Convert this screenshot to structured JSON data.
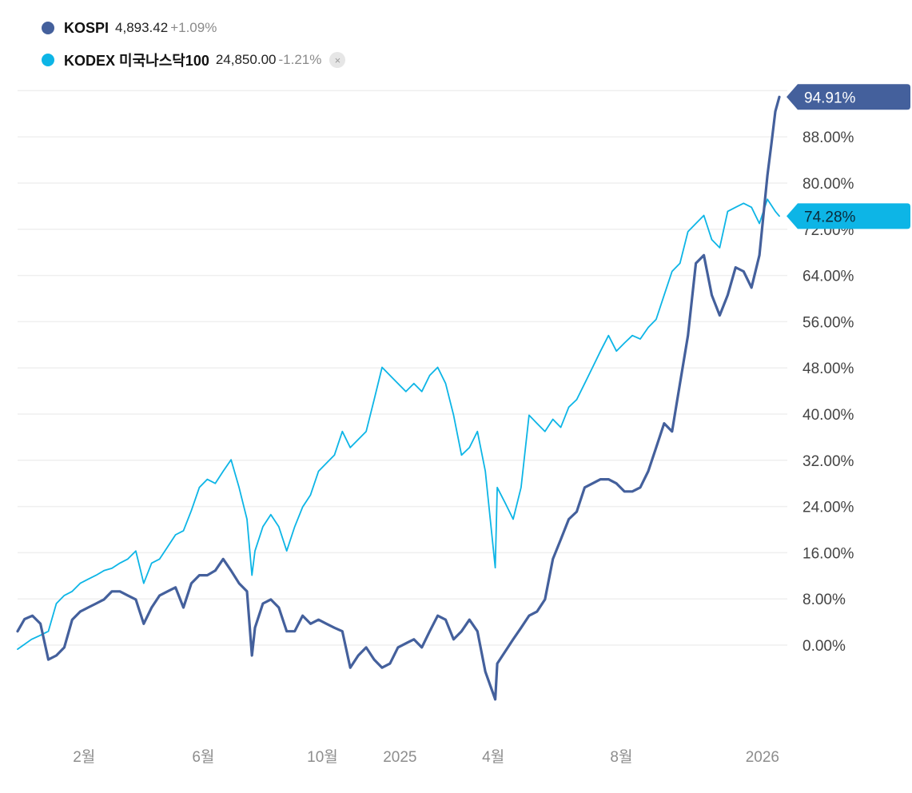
{
  "legend": [
    {
      "name": "KOSPI",
      "price": "4,893.42",
      "change": "+1.09%",
      "color": "#44609c",
      "removable": false
    },
    {
      "name": "KODEX 미국나스닥100",
      "price": "24,850.00",
      "change": "-1.21%",
      "color": "#0db5e6",
      "removable": true,
      "remove_icon": "×"
    }
  ],
  "chart_data": {
    "type": "line",
    "title": "",
    "xlabel": "",
    "ylabel": "",
    "y_unit": "%",
    "ylim": [
      -16,
      96
    ],
    "yticks": [
      0,
      8,
      16,
      24,
      32,
      40,
      48,
      56,
      64,
      72,
      80,
      88
    ],
    "ytick_labels": [
      "0.00%",
      "8.00%",
      "16.00%",
      "24.00%",
      "32.00%",
      "40.00%",
      "48.00%",
      "56.00%",
      "64.00%",
      "72.00%",
      "80.00%",
      "88.00%"
    ],
    "xlim": [
      "2023-12-13",
      "2026-01-19"
    ],
    "xticks": [
      {
        "date": "2024-02-18",
        "label": "2월"
      },
      {
        "date": "2024-06-17",
        "label": "6월"
      },
      {
        "date": "2024-10-15",
        "label": "10월"
      },
      {
        "date": "2025-01-01",
        "label": "2025"
      },
      {
        "date": "2025-04-05",
        "label": "4월"
      },
      {
        "date": "2025-08-12",
        "label": "8월"
      },
      {
        "date": "2026-01-01",
        "label": "2026"
      }
    ],
    "grid": true,
    "legend_position": "top-left",
    "series": [
      {
        "name": "KOSPI",
        "color": "#44609c",
        "last_value_label": "94.91%",
        "points": [
          [
            "2023-12-13",
            2.4
          ],
          [
            "2023-12-20",
            4.5
          ],
          [
            "2023-12-28",
            5.1
          ],
          [
            "2024-01-05",
            3.7
          ],
          [
            "2024-01-13",
            -2.5
          ],
          [
            "2024-01-21",
            -1.8
          ],
          [
            "2024-01-29",
            -0.4
          ],
          [
            "2024-02-06",
            4.4
          ],
          [
            "2024-02-14",
            5.8
          ],
          [
            "2024-02-22",
            6.5
          ],
          [
            "2024-03-01",
            7.2
          ],
          [
            "2024-03-09",
            7.9
          ],
          [
            "2024-03-17",
            9.3
          ],
          [
            "2024-03-25",
            9.3
          ],
          [
            "2024-04-02",
            8.6
          ],
          [
            "2024-04-10",
            7.9
          ],
          [
            "2024-04-18",
            3.7
          ],
          [
            "2024-04-26",
            6.5
          ],
          [
            "2024-05-04",
            8.6
          ],
          [
            "2024-05-12",
            9.3
          ],
          [
            "2024-05-20",
            10.0
          ],
          [
            "2024-05-28",
            6.5
          ],
          [
            "2024-06-05",
            10.7
          ],
          [
            "2024-06-13",
            12.1
          ],
          [
            "2024-06-21",
            12.1
          ],
          [
            "2024-06-29",
            12.9
          ],
          [
            "2024-07-07",
            14.9
          ],
          [
            "2024-07-15",
            12.9
          ],
          [
            "2024-07-23",
            10.7
          ],
          [
            "2024-07-31",
            9.3
          ],
          [
            "2024-08-05",
            -1.8
          ],
          [
            "2024-08-08",
            3.0
          ],
          [
            "2024-08-16",
            7.2
          ],
          [
            "2024-08-24",
            7.9
          ],
          [
            "2024-09-01",
            6.5
          ],
          [
            "2024-09-09",
            2.4
          ],
          [
            "2024-09-17",
            2.4
          ],
          [
            "2024-09-25",
            5.1
          ],
          [
            "2024-10-03",
            3.7
          ],
          [
            "2024-10-11",
            4.4
          ],
          [
            "2024-10-19",
            3.7
          ],
          [
            "2024-10-27",
            3.0
          ],
          [
            "2024-11-04",
            2.4
          ],
          [
            "2024-11-12",
            -3.9
          ],
          [
            "2024-11-20",
            -1.8
          ],
          [
            "2024-11-28",
            -0.4
          ],
          [
            "2024-12-06",
            -2.5
          ],
          [
            "2024-12-14",
            -3.9
          ],
          [
            "2024-12-22",
            -3.2
          ],
          [
            "2024-12-30",
            -0.4
          ],
          [
            "2025-01-07",
            0.3
          ],
          [
            "2025-01-15",
            1.0
          ],
          [
            "2025-01-23",
            -0.4
          ],
          [
            "2025-01-31",
            2.4
          ],
          [
            "2025-02-08",
            5.1
          ],
          [
            "2025-02-16",
            4.4
          ],
          [
            "2025-02-24",
            1.0
          ],
          [
            "2025-03-04",
            2.4
          ],
          [
            "2025-03-12",
            4.4
          ],
          [
            "2025-03-20",
            2.4
          ],
          [
            "2025-03-28",
            -4.6
          ],
          [
            "2025-04-07",
            -9.4
          ],
          [
            "2025-04-09",
            -3.2
          ],
          [
            "2025-04-17",
            -1.1
          ],
          [
            "2025-04-25",
            1.0
          ],
          [
            "2025-05-03",
            3.0
          ],
          [
            "2025-05-11",
            5.1
          ],
          [
            "2025-05-19",
            5.8
          ],
          [
            "2025-05-27",
            7.9
          ],
          [
            "2025-06-04",
            14.9
          ],
          [
            "2025-06-12",
            18.3
          ],
          [
            "2025-06-20",
            21.8
          ],
          [
            "2025-06-28",
            23.1
          ],
          [
            "2025-07-06",
            27.3
          ],
          [
            "2025-07-14",
            28.0
          ],
          [
            "2025-07-22",
            28.7
          ],
          [
            "2025-07-30",
            28.7
          ],
          [
            "2025-08-07",
            28.0
          ],
          [
            "2025-08-15",
            26.6
          ],
          [
            "2025-08-23",
            26.6
          ],
          [
            "2025-08-31",
            27.3
          ],
          [
            "2025-09-08",
            30.1
          ],
          [
            "2025-09-16",
            34.2
          ],
          [
            "2025-09-24",
            38.4
          ],
          [
            "2025-10-02",
            37.0
          ],
          [
            "2025-10-10",
            45.3
          ],
          [
            "2025-10-18",
            53.6
          ],
          [
            "2025-10-26",
            66.1
          ],
          [
            "2025-11-03",
            67.5
          ],
          [
            "2025-11-11",
            60.6
          ],
          [
            "2025-11-19",
            57.1
          ],
          [
            "2025-11-27",
            60.6
          ],
          [
            "2025-12-05",
            65.4
          ],
          [
            "2025-12-13",
            64.7
          ],
          [
            "2025-12-21",
            61.9
          ],
          [
            "2025-12-29",
            67.5
          ],
          [
            "2026-01-06",
            81.3
          ],
          [
            "2026-01-10",
            86.8
          ],
          [
            "2026-01-14",
            92.4
          ],
          [
            "2026-01-18",
            94.91
          ]
        ]
      },
      {
        "name": "KODEX 미국나스닥100",
        "color": "#0db5e6",
        "last_value_label": "74.28%",
        "points": [
          [
            "2023-12-13",
            -0.7
          ],
          [
            "2023-12-27",
            1.0
          ],
          [
            "2024-01-05",
            1.7
          ],
          [
            "2024-01-13",
            2.4
          ],
          [
            "2024-01-21",
            7.2
          ],
          [
            "2024-01-29",
            8.6
          ],
          [
            "2024-02-06",
            9.3
          ],
          [
            "2024-02-14",
            10.7
          ],
          [
            "2024-02-22",
            11.4
          ],
          [
            "2024-03-01",
            12.1
          ],
          [
            "2024-03-09",
            12.9
          ],
          [
            "2024-03-17",
            13.3
          ],
          [
            "2024-03-25",
            14.2
          ],
          [
            "2024-04-02",
            14.9
          ],
          [
            "2024-04-10",
            16.3
          ],
          [
            "2024-04-18",
            10.7
          ],
          [
            "2024-04-26",
            14.2
          ],
          [
            "2024-05-04",
            14.9
          ],
          [
            "2024-05-12",
            17.0
          ],
          [
            "2024-05-20",
            19.1
          ],
          [
            "2024-05-28",
            19.8
          ],
          [
            "2024-06-05",
            23.3
          ],
          [
            "2024-06-13",
            27.3
          ],
          [
            "2024-06-21",
            28.7
          ],
          [
            "2024-06-29",
            28.0
          ],
          [
            "2024-07-07",
            30.1
          ],
          [
            "2024-07-15",
            32.1
          ],
          [
            "2024-07-23",
            27.3
          ],
          [
            "2024-07-31",
            21.8
          ],
          [
            "2024-08-05",
            12.1
          ],
          [
            "2024-08-08",
            16.3
          ],
          [
            "2024-08-16",
            20.5
          ],
          [
            "2024-08-24",
            22.6
          ],
          [
            "2024-09-01",
            20.5
          ],
          [
            "2024-09-09",
            16.3
          ],
          [
            "2024-09-17",
            20.5
          ],
          [
            "2024-09-25",
            23.9
          ],
          [
            "2024-10-03",
            26.0
          ],
          [
            "2024-10-11",
            30.1
          ],
          [
            "2024-10-19",
            31.5
          ],
          [
            "2024-10-27",
            32.9
          ],
          [
            "2024-11-04",
            37.0
          ],
          [
            "2024-11-12",
            34.2
          ],
          [
            "2024-11-20",
            35.6
          ],
          [
            "2024-11-28",
            37.0
          ],
          [
            "2024-12-06",
            42.5
          ],
          [
            "2024-12-14",
            48.1
          ],
          [
            "2024-12-22",
            46.7
          ],
          [
            "2024-12-30",
            45.3
          ],
          [
            "2025-01-07",
            43.9
          ],
          [
            "2025-01-15",
            45.3
          ],
          [
            "2025-01-23",
            43.9
          ],
          [
            "2025-01-31",
            46.7
          ],
          [
            "2025-02-08",
            48.1
          ],
          [
            "2025-02-16",
            45.3
          ],
          [
            "2025-02-24",
            39.8
          ],
          [
            "2025-03-04",
            32.9
          ],
          [
            "2025-03-12",
            34.2
          ],
          [
            "2025-03-20",
            37.0
          ],
          [
            "2025-03-28",
            30.1
          ],
          [
            "2025-04-07",
            13.4
          ],
          [
            "2025-04-09",
            27.3
          ],
          [
            "2025-04-17",
            24.6
          ],
          [
            "2025-04-25",
            21.8
          ],
          [
            "2025-05-03",
            27.3
          ],
          [
            "2025-05-11",
            39.8
          ],
          [
            "2025-05-19",
            38.4
          ],
          [
            "2025-05-27",
            37.0
          ],
          [
            "2025-06-04",
            39.1
          ],
          [
            "2025-06-12",
            37.7
          ],
          [
            "2025-06-20",
            41.2
          ],
          [
            "2025-06-28",
            42.5
          ],
          [
            "2025-07-06",
            45.3
          ],
          [
            "2025-07-14",
            48.1
          ],
          [
            "2025-07-22",
            50.9
          ],
          [
            "2025-07-30",
            53.6
          ],
          [
            "2025-08-07",
            50.9
          ],
          [
            "2025-08-15",
            52.3
          ],
          [
            "2025-08-23",
            53.6
          ],
          [
            "2025-08-31",
            53.0
          ],
          [
            "2025-09-08",
            55.0
          ],
          [
            "2025-09-16",
            56.4
          ],
          [
            "2025-09-24",
            60.6
          ],
          [
            "2025-10-02",
            64.7
          ],
          [
            "2025-10-10",
            66.1
          ],
          [
            "2025-10-18",
            71.6
          ],
          [
            "2025-10-26",
            73.0
          ],
          [
            "2025-11-03",
            74.4
          ],
          [
            "2025-11-11",
            70.2
          ],
          [
            "2025-11-19",
            68.8
          ],
          [
            "2025-11-27",
            75.1
          ],
          [
            "2025-12-05",
            75.8
          ],
          [
            "2025-12-13",
            76.5
          ],
          [
            "2025-12-21",
            75.8
          ],
          [
            "2025-12-29",
            73.0
          ],
          [
            "2026-01-06",
            77.2
          ],
          [
            "2026-01-14",
            75.1
          ],
          [
            "2026-01-18",
            74.28
          ]
        ]
      }
    ]
  }
}
